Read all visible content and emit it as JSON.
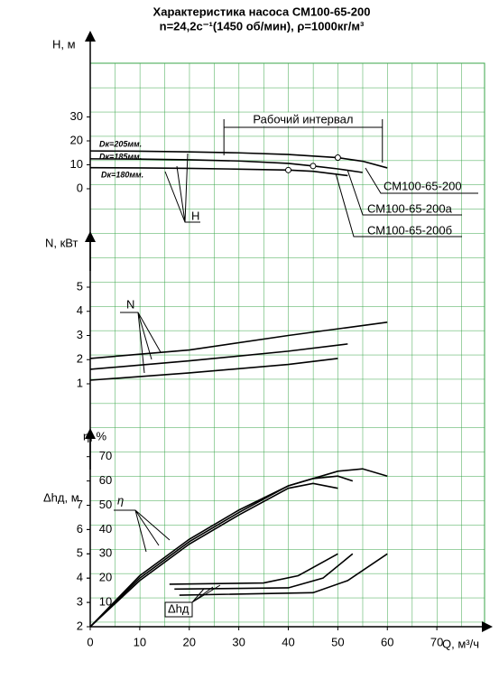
{
  "title": "Характеристика насоса СМ100-65-200",
  "subtitle": "n=24,2с⁻¹(1450 об/мин), ρ=1000кг/м³",
  "chart_data": [
    {
      "type": "line",
      "y_label": "H, м",
      "color": "#000000",
      "xlim": [
        0,
        80
      ],
      "ylim": [
        0,
        30
      ],
      "yticks": [
        0,
        10,
        20,
        30
      ],
      "grid": true,
      "curve_label": "H",
      "series": [
        {
          "name": "Dк=205мм.",
          "model": "СМ100-65-200",
          "x": [
            0,
            10,
            20,
            30,
            40,
            50,
            55,
            60
          ],
          "values": [
            15.8,
            15.7,
            15.4,
            15,
            14.3,
            13,
            11.5,
            8.7
          ]
        },
        {
          "name": "Dк=185мм.",
          "model": "СМ100-65-200а",
          "x": [
            0,
            10,
            20,
            30,
            40,
            45,
            50,
            55
          ],
          "values": [
            12.5,
            12.4,
            12.1,
            11.6,
            10.6,
            9.5,
            8.3,
            6.8
          ]
        },
        {
          "name": "Dк=180мм.",
          "model": "СМ100-65-200б",
          "x": [
            0,
            10,
            20,
            30,
            40,
            45,
            52
          ],
          "values": [
            8.8,
            8.7,
            8.5,
            8.2,
            7.8,
            7.3,
            5.5
          ]
        }
      ],
      "operating_points": {
        "x": [
          50,
          45,
          40
        ],
        "values": [
          13,
          9.5,
          7.8
        ]
      },
      "working_interval": {
        "label": "Рабочий интервал",
        "x": [
          27,
          59
        ]
      }
    },
    {
      "type": "line",
      "y_label": "N, кВт",
      "color": "#000000",
      "xlim": [
        0,
        80
      ],
      "ylim": [
        1,
        5
      ],
      "yticks": [
        1,
        2,
        3,
        4,
        5
      ],
      "grid": true,
      "curve_label": "N",
      "series": [
        {
          "x": [
            0,
            20,
            40,
            60
          ],
          "values": [
            2.05,
            2.4,
            3,
            3.55
          ]
        },
        {
          "x": [
            0,
            20,
            40,
            52
          ],
          "values": [
            1.6,
            1.95,
            2.35,
            2.65
          ]
        },
        {
          "x": [
            0,
            20,
            40,
            50
          ],
          "values": [
            1.15,
            1.45,
            1.8,
            2.05
          ]
        }
      ]
    },
    {
      "type": "line",
      "y_label": "η, %",
      "color": "#000000",
      "xlim": [
        0,
        80
      ],
      "ylim": [
        0,
        70
      ],
      "yticks": [
        10,
        20,
        30,
        40,
        50,
        60,
        70
      ],
      "grid": true,
      "curve_label": "η",
      "series": [
        {
          "x": [
            0,
            10,
            20,
            30,
            40,
            50,
            55,
            60
          ],
          "values": [
            0,
            21,
            36,
            48,
            58,
            64,
            65,
            62
          ]
        },
        {
          "x": [
            0,
            10,
            20,
            30,
            40,
            45,
            50,
            53
          ],
          "values": [
            0,
            20,
            35,
            47,
            58,
            61,
            62,
            60
          ]
        },
        {
          "x": [
            0,
            10,
            20,
            30,
            40,
            45,
            50
          ],
          "values": [
            0,
            19,
            34,
            46,
            57,
            59,
            57
          ]
        }
      ]
    },
    {
      "type": "line",
      "y_label": "Δhд, м",
      "x_label": "Q, м³/ч",
      "color": "#000000",
      "xlim": [
        0,
        80
      ],
      "ylim": [
        2,
        7
      ],
      "yticks": [
        2,
        3,
        4,
        5,
        6,
        7
      ],
      "xticks": [
        0,
        10,
        20,
        30,
        40,
        50,
        60,
        70
      ],
      "grid": true,
      "curve_label": "Δhд",
      "series": [
        {
          "x": [
            16,
            35,
            42,
            50
          ],
          "values": [
            3.75,
            3.8,
            4.1,
            5.0
          ]
        },
        {
          "x": [
            17,
            40,
            47,
            53
          ],
          "values": [
            3.55,
            3.6,
            4.0,
            5.0
          ]
        },
        {
          "x": [
            18,
            45,
            52,
            60
          ],
          "values": [
            3.3,
            3.4,
            3.9,
            5.0
          ]
        }
      ]
    }
  ]
}
